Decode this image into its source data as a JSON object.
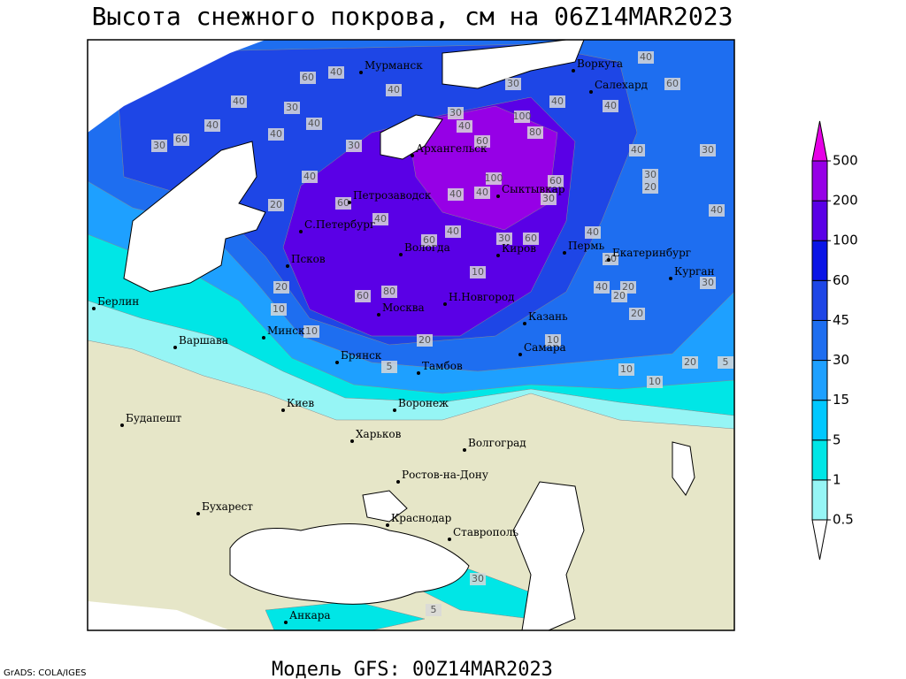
{
  "title": "Высота снежного покрова, см на 06Z14MAR2023",
  "footer": {
    "credit": "GrADS: COLA/IGES",
    "model": "Модель GFS: 00Z14MAR2023"
  },
  "cities": [
    "Мурманск",
    "Воркута",
    "Салехард",
    "Архангельск",
    "Петрозаводск",
    "Сыктывкар",
    "С.Петербург",
    "Вологда",
    "Киров",
    "Пермь",
    "Екатеринбург",
    "Курган",
    "Псков",
    "Минск",
    "Москва",
    "Н.Новгород",
    "Казань",
    "Берлин",
    "Варшава",
    "Брянск",
    "Тамбов",
    "Самара",
    "Киев",
    "Воронеж",
    "Харьков",
    "Волгоград",
    "Будапешт",
    "Ростов-на-Дону",
    "Бухарест",
    "Краснодар",
    "Ставрополь",
    "Анкара"
  ],
  "colorbar": {
    "levels": [
      0.5,
      1,
      5,
      15,
      30,
      45,
      60,
      100,
      200,
      500
    ],
    "colors": [
      "#ffffff",
      "#96f5f5",
      "#00e6e6",
      "#00c8ff",
      "#1ea0ff",
      "#1e6ef0",
      "#1e46e6",
      "#0a14e6",
      "#5a00e6",
      "#9600e6",
      "#e600e6"
    ]
  },
  "contour_labels": [
    60,
    40,
    40,
    40,
    30,
    60,
    40,
    30,
    40,
    40,
    40,
    30,
    30,
    40,
    60,
    30,
    40,
    100,
    80,
    40,
    60,
    40,
    30,
    40,
    40,
    20,
    60,
    40,
    60,
    100,
    60,
    30,
    40,
    30,
    60,
    30,
    40,
    60,
    80,
    20,
    40,
    40,
    40,
    20,
    30,
    20,
    10,
    20,
    10,
    20,
    5,
    10,
    20,
    20,
    10,
    10,
    20,
    5,
    10,
    30,
    5
  ]
}
